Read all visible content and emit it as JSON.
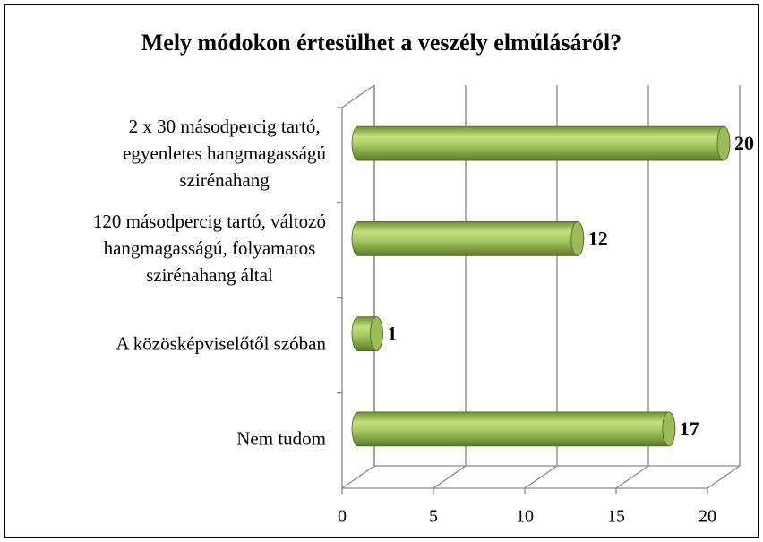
{
  "chart_data": {
    "type": "bar",
    "orientation": "horizontal",
    "style": "3d-cylinder",
    "title": "Mely módokon értesülhet a veszély elmúlásáról?",
    "categories": [
      [
        "2 x 30 másodpercig tartó,",
        "egyenletes hangmagasságú",
        "szirénahang"
      ],
      [
        "120 másodpercig tartó, változó",
        "hangmagasságú, folyamatos",
        "szirénahang által"
      ],
      [
        "A közösképviselőtől szóban"
      ],
      [
        "Nem tudom"
      ]
    ],
    "values": [
      20,
      12,
      1,
      17
    ],
    "color": "#9bbb59",
    "xlim": [
      0,
      20
    ],
    "xticks": [
      0,
      5,
      10,
      15,
      20
    ],
    "grid": true
  }
}
